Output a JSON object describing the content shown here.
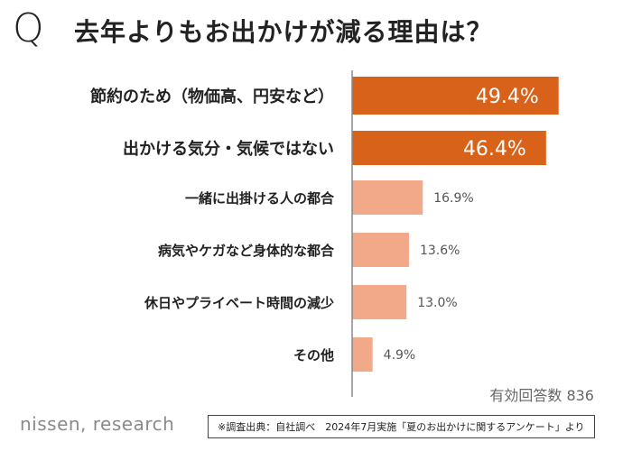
{
  "header": {
    "q_mark": "Q",
    "title": "去年よりもお出かけが減る理由は？"
  },
  "chart_data": {
    "type": "bar",
    "orientation": "horizontal",
    "title": "去年よりもお出かけが減る理由は？",
    "unit": "%",
    "categories": [
      "節約のため（物価高、円安など）",
      "出かける気分・気候ではない",
      "一緒に出掛ける人の都合",
      "病気やケガなど身体的な都合",
      "休日やプライベート時間の減少",
      "その他"
    ],
    "values": [
      49.4,
      46.4,
      16.9,
      13.6,
      13.0,
      4.9
    ],
    "value_labels": [
      "49.4%",
      "46.4%",
      "16.9%",
      "13.6%",
      "13.0%",
      "4.9%"
    ],
    "highlighted": [
      true,
      true,
      false,
      false,
      false,
      false
    ],
    "xlim": [
      0,
      60
    ],
    "grid": false,
    "colors": {
      "highlight": "#d9621b",
      "normal": "#f2a98a",
      "axis": "#888888",
      "highlight_text": "#ffffff",
      "normal_text": "#555555"
    }
  },
  "footer": {
    "respondents": "有効回答数 836",
    "brand": "nissen, research",
    "source": "※調査出典：自社調べ　2024年7月実施「夏のお出かけに関するアンケート」より"
  }
}
